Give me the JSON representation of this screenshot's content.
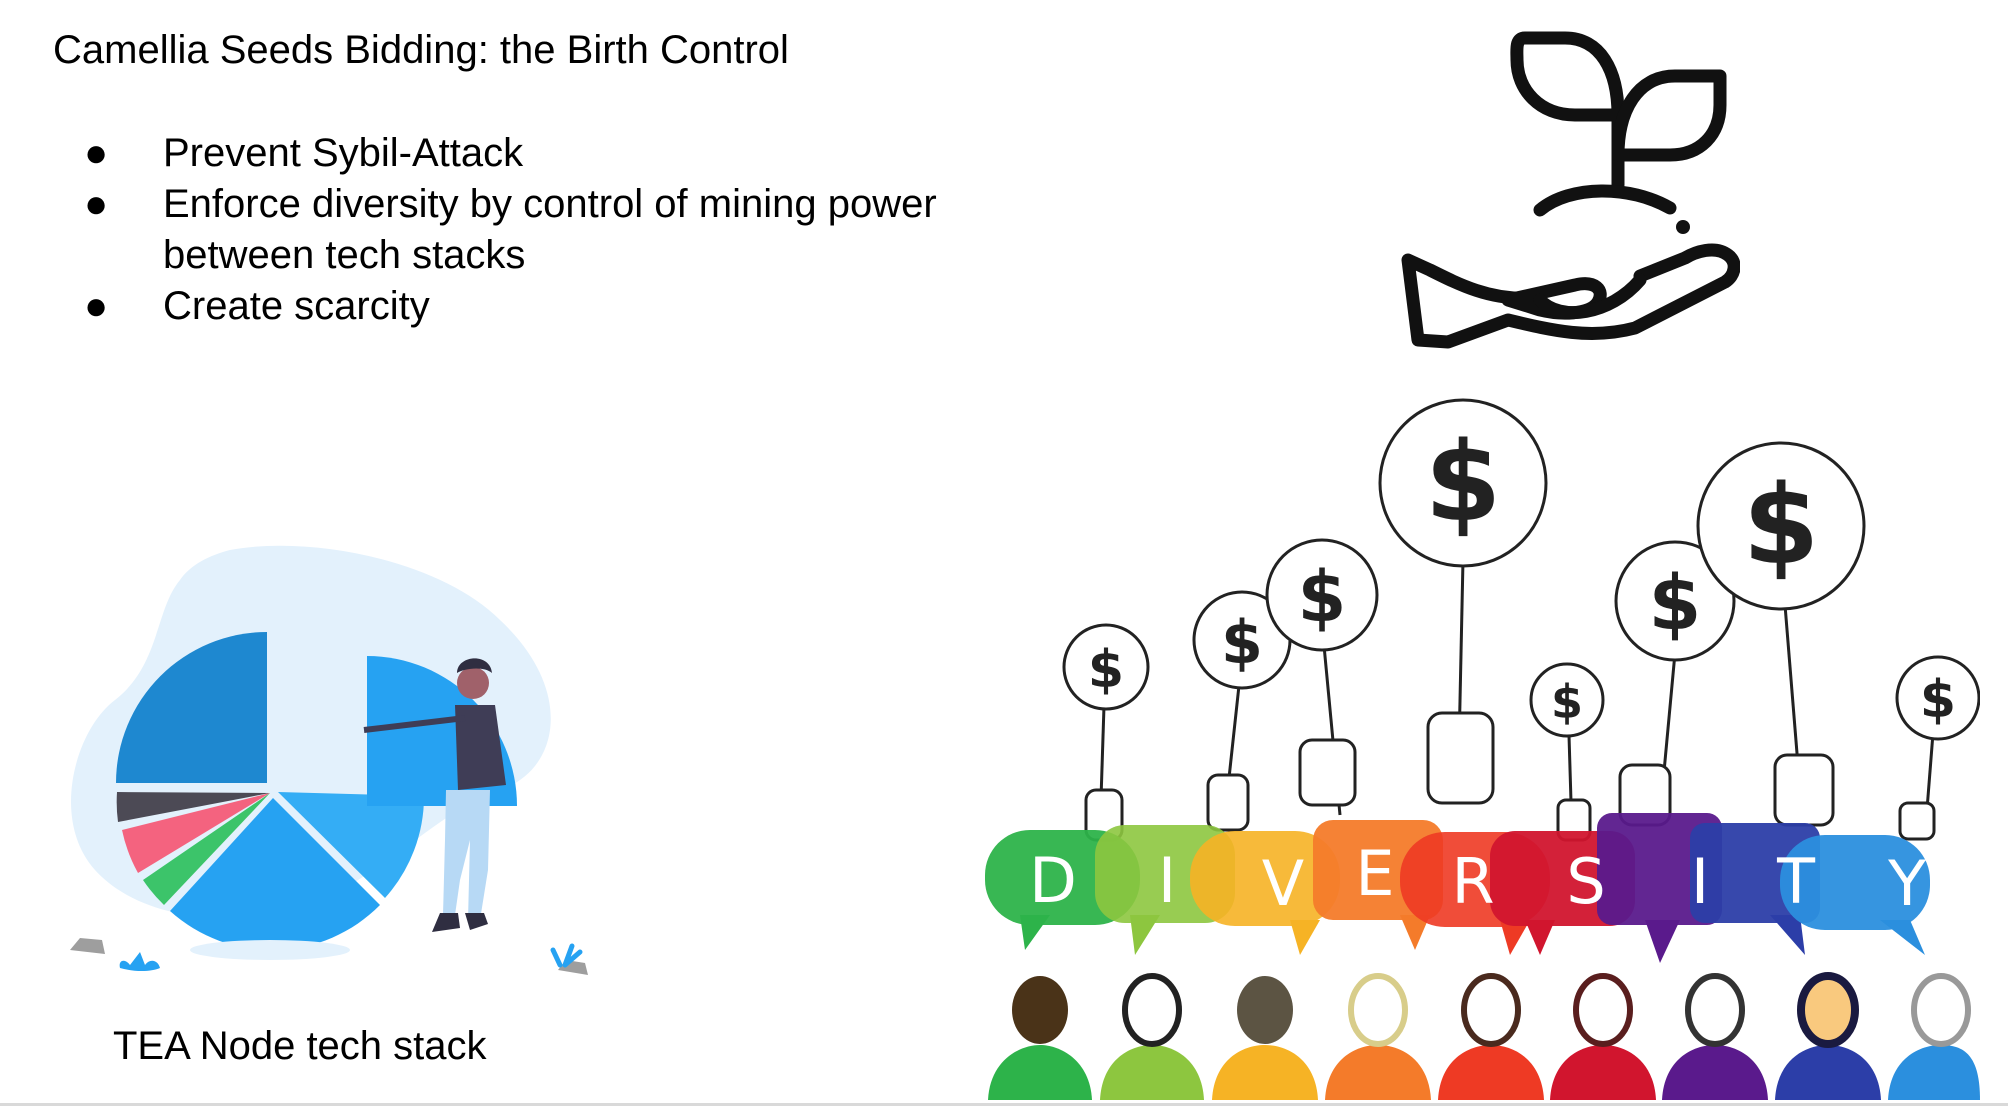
{
  "slide": {
    "title": "Camellia Seeds Bidding: the Birth Control",
    "bullet_marker": "●",
    "bullets": [
      "Prevent Sybil-Attack",
      "Enforce diversity by control of mining power",
      "between tech stacks",
      "Create scarcity"
    ],
    "caption": "TEA Node tech stack"
  },
  "diversity_banner": {
    "letters": [
      "D",
      "I",
      "V",
      "E",
      "R",
      "S",
      "I",
      "T",
      "Y"
    ],
    "letter_colors": [
      "#2db34a",
      "#8dc63f",
      "#f6b325",
      "#f47b2a",
      "#ee3a24",
      "#d1152e",
      "#5a1a8c",
      "#2c3ea8",
      "#2b8fde"
    ],
    "sign_symbol": "$"
  },
  "pie_colors": {
    "dark_blue": "#1e88d0",
    "charcoal": "#4c4a55",
    "pink": "#f4637f",
    "green": "#3cc46a",
    "blue": "#26a2f2",
    "light_blue": "#34adf5",
    "blob": "#e3f1fc"
  }
}
